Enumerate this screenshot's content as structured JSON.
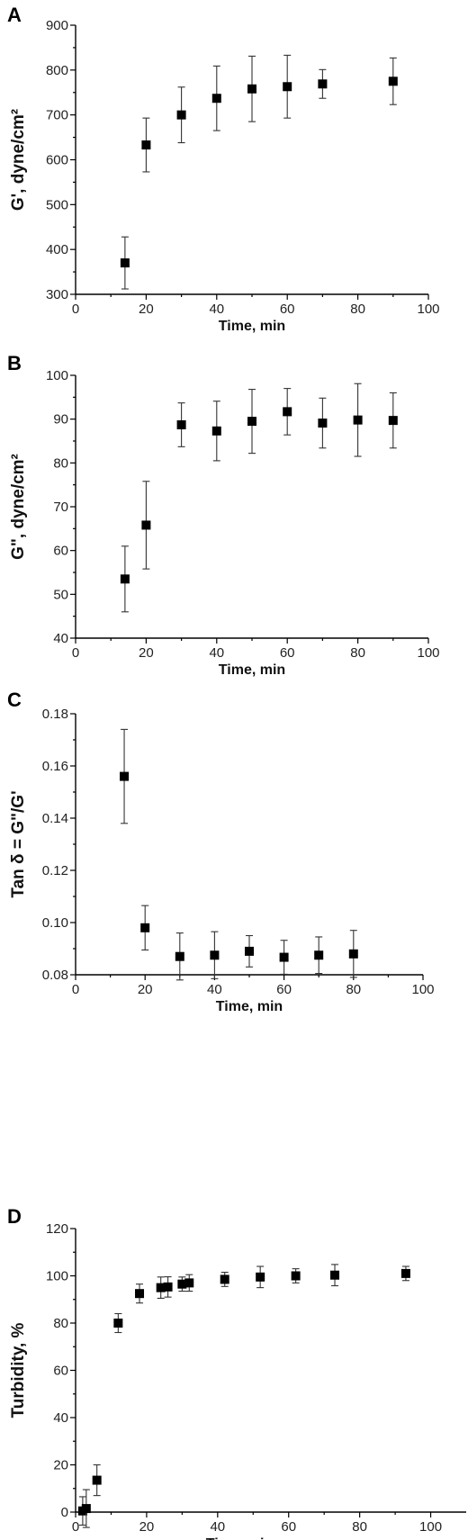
{
  "chart_data": [
    {
      "panel": "A",
      "type": "scatter",
      "xlabel": "Time, min",
      "ylabel": "G', dyne/cm²",
      "xlim": [
        0,
        100
      ],
      "ylim": [
        300,
        900
      ],
      "xticks": [
        0,
        20,
        40,
        60,
        80,
        100
      ],
      "yticks": [
        300,
        400,
        500,
        600,
        700,
        800,
        900
      ],
      "points": [
        {
          "x": 14,
          "y": 370,
          "err": 58
        },
        {
          "x": 20,
          "y": 633,
          "err": 60
        },
        {
          "x": 30,
          "y": 700,
          "err": 62
        },
        {
          "x": 40,
          "y": 737,
          "err": 72
        },
        {
          "x": 50,
          "y": 758,
          "err": 73
        },
        {
          "x": 60,
          "y": 763,
          "err": 70
        },
        {
          "x": 70,
          "y": 769,
          "err": 32
        },
        {
          "x": 90,
          "y": 775,
          "err": 52
        }
      ]
    },
    {
      "panel": "B",
      "type": "scatter",
      "xlabel": "Time, min",
      "ylabel": "G\", dyne/cm²",
      "xlim": [
        0,
        100
      ],
      "ylim": [
        40,
        100
      ],
      "xticks": [
        0,
        20,
        40,
        60,
        80,
        100
      ],
      "yticks": [
        40,
        50,
        60,
        70,
        80,
        90,
        100
      ],
      "points": [
        {
          "x": 14,
          "y": 53.5,
          "err": 7.5
        },
        {
          "x": 20,
          "y": 65.8,
          "err": 10
        },
        {
          "x": 30,
          "y": 88.7,
          "err": 5
        },
        {
          "x": 40,
          "y": 87.3,
          "err": 6.8
        },
        {
          "x": 50,
          "y": 89.5,
          "err": 7.3
        },
        {
          "x": 60,
          "y": 91.7,
          "err": 5.3
        },
        {
          "x": 70,
          "y": 89.1,
          "err": 5.7
        },
        {
          "x": 80,
          "y": 89.8,
          "err": 8.3
        },
        {
          "x": 90,
          "y": 89.7,
          "err": 6.3
        }
      ]
    },
    {
      "panel": "C",
      "type": "scatter",
      "xlabel": "Time, min",
      "ylabel": "Tan δ = G\"/G'",
      "xlim": [
        0,
        100
      ],
      "ylim": [
        0.08,
        0.18
      ],
      "xticks": [
        0,
        20,
        40,
        60,
        80,
        100
      ],
      "yticks": [
        0.08,
        0.1,
        0.12,
        0.14,
        0.16,
        0.18
      ],
      "ytick_labels": [
        "0.08",
        "0.10",
        "0.12",
        "0.14",
        "0.16",
        "0.18"
      ],
      "points": [
        {
          "x": 14,
          "y": 0.156,
          "err": 0.018
        },
        {
          "x": 20,
          "y": 0.098,
          "err": 0.0085
        },
        {
          "x": 30,
          "y": 0.087,
          "err": 0.009
        },
        {
          "x": 40,
          "y": 0.0875,
          "err": 0.009
        },
        {
          "x": 50,
          "y": 0.089,
          "err": 0.006
        },
        {
          "x": 60,
          "y": 0.0867,
          "err": 0.0065
        },
        {
          "x": 70,
          "y": 0.0875,
          "err": 0.007
        },
        {
          "x": 80,
          "y": 0.088,
          "err": 0.009
        }
      ]
    },
    {
      "panel": "D",
      "type": "scatter",
      "xlabel": "Time, min",
      "ylabel": "Turbidity, %",
      "xlim": [
        0,
        110
      ],
      "ylim": [
        0,
        120
      ],
      "xticks": [
        0,
        20,
        40,
        60,
        80,
        100
      ],
      "yticks": [
        0,
        20,
        40,
        60,
        80,
        100,
        120
      ],
      "points": [
        {
          "x": 2,
          "y": 0.5,
          "err": 6
        },
        {
          "x": 3,
          "y": 1.5,
          "err": 8
        },
        {
          "x": 6,
          "y": 13.5,
          "err": 6.5
        },
        {
          "x": 12,
          "y": 80,
          "err": 4
        },
        {
          "x": 18,
          "y": 92.5,
          "err": 4
        },
        {
          "x": 24,
          "y": 95,
          "err": 4.5
        },
        {
          "x": 26,
          "y": 95.3,
          "err": 4.3
        },
        {
          "x": 30,
          "y": 96.5,
          "err": 3
        },
        {
          "x": 32,
          "y": 97,
          "err": 3.5
        },
        {
          "x": 42,
          "y": 98.5,
          "err": 3
        },
        {
          "x": 52,
          "y": 99.5,
          "err": 4.5
        },
        {
          "x": 62,
          "y": 100,
          "err": 3
        },
        {
          "x": 73,
          "y": 100.3,
          "err": 4.5
        },
        {
          "x": 93,
          "y": 101,
          "err": 3
        }
      ]
    }
  ]
}
